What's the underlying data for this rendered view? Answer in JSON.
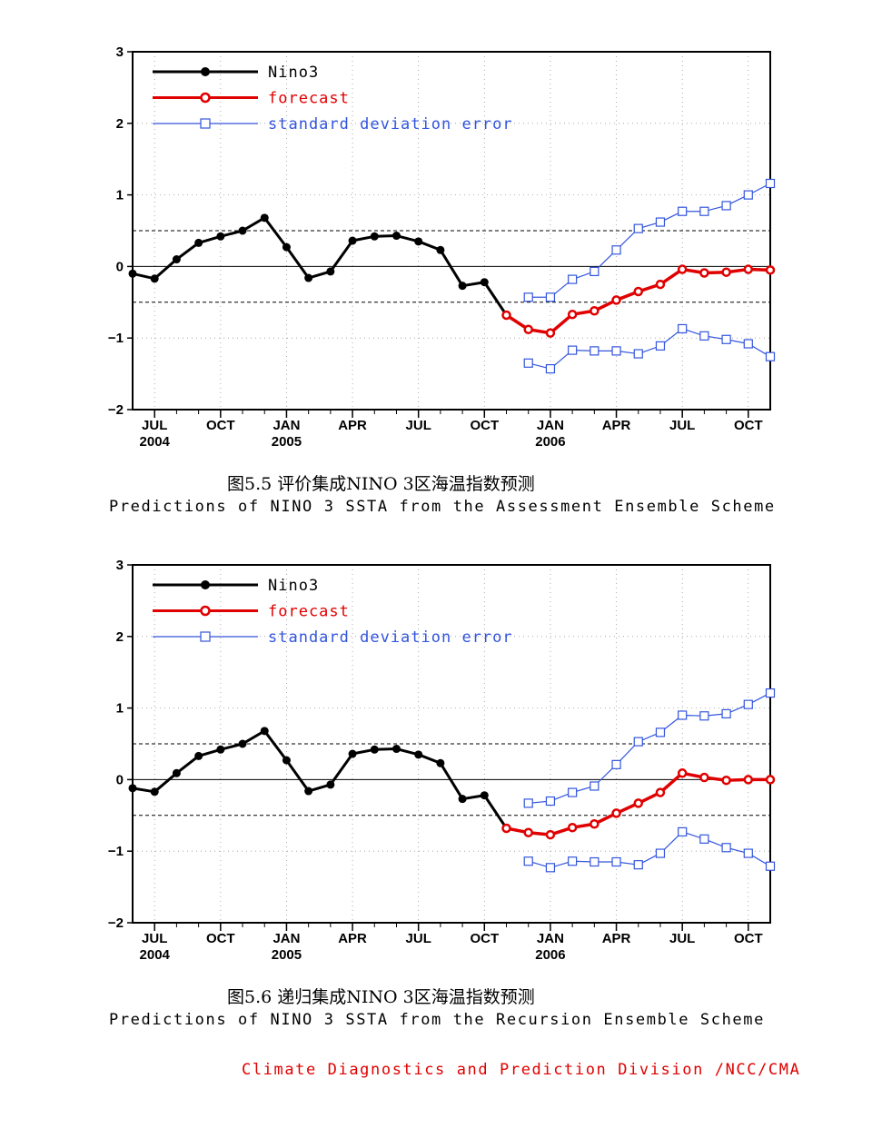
{
  "chart_data": [
    {
      "type": "line",
      "ylim": [
        -2,
        3
      ],
      "yticks": [
        "−2",
        "−1",
        "0",
        "1",
        "2",
        "3"
      ],
      "x_tick_labels": [
        {
          "month": "JUL",
          "year": "2004",
          "x": 1
        },
        {
          "month": "OCT",
          "year": "",
          "x": 4
        },
        {
          "month": "JAN",
          "year": "2005",
          "x": 7
        },
        {
          "month": "APR",
          "year": "",
          "x": 10
        },
        {
          "month": "JUL",
          "year": "",
          "x": 13
        },
        {
          "month": "OCT",
          "year": "",
          "x": 16
        },
        {
          "month": "JAN",
          "year": "2006",
          "x": 19
        },
        {
          "month": "APR",
          "year": "",
          "x": 22
        },
        {
          "month": "JUL",
          "year": "",
          "x": 25
        },
        {
          "month": "OCT",
          "year": "",
          "x": 28
        }
      ],
      "xlim": [
        0,
        29
      ],
      "reference_lines": [
        0.5,
        0,
        -0.5
      ],
      "legend": [
        "Nino3",
        "forecast",
        "standard deviation error"
      ],
      "series": [
        {
          "name": "Nino3",
          "color": "#000000",
          "x": [
            0,
            1,
            2,
            3,
            4,
            5,
            6,
            7,
            8,
            9,
            10,
            11,
            12,
            13,
            14,
            15,
            16,
            17
          ],
          "values": [
            -0.1,
            -0.17,
            0.1,
            0.33,
            0.42,
            0.5,
            0.68,
            0.27,
            -0.16,
            -0.07,
            0.36,
            0.42,
            0.43,
            0.35,
            0.23,
            -0.27,
            -0.22,
            -0.68
          ]
        },
        {
          "name": "forecast",
          "color": "#e00000",
          "x": [
            17,
            18,
            19,
            20,
            21,
            22,
            23,
            24,
            25,
            26,
            27,
            28,
            29
          ],
          "values": [
            -0.68,
            -0.88,
            -0.93,
            -0.67,
            -0.62,
            -0.47,
            -0.35,
            -0.25,
            -0.04,
            -0.09,
            -0.08,
            -0.04,
            -0.05
          ]
        },
        {
          "name": "standard deviation error",
          "color": "#3355dd",
          "x": [
            18,
            19,
            20,
            21,
            22,
            23,
            24,
            25,
            26,
            27,
            28,
            29
          ],
          "values": [
            -0.43,
            -0.43,
            -0.18,
            -0.07,
            0.23,
            0.53,
            0.62,
            0.77,
            0.77,
            0.85,
            1.0,
            1.16
          ]
        },
        {
          "name": "standard deviation error",
          "color": "#3355dd",
          "x": [
            18,
            19,
            20,
            21,
            22,
            23,
            24,
            25,
            26,
            27,
            28,
            29
          ],
          "values": [
            -1.35,
            -1.43,
            -1.17,
            -1.18,
            -1.18,
            -1.22,
            -1.11,
            -0.87,
            -0.97,
            -1.02,
            -1.08,
            -1.26
          ]
        }
      ],
      "caption_cn": "图5.5  评价集成NINO 3区海温指数预测",
      "caption_en": "Predictions of NINO 3 SSTA from the Assessment Ensemble Scheme"
    },
    {
      "type": "line",
      "ylim": [
        -2,
        3
      ],
      "yticks": [
        "−2",
        "−1",
        "0",
        "1",
        "2",
        "3"
      ],
      "x_tick_labels": [
        {
          "month": "JUL",
          "year": "2004",
          "x": 1
        },
        {
          "month": "OCT",
          "year": "",
          "x": 4
        },
        {
          "month": "JAN",
          "year": "2005",
          "x": 7
        },
        {
          "month": "APR",
          "year": "",
          "x": 10
        },
        {
          "month": "JUL",
          "year": "",
          "x": 13
        },
        {
          "month": "OCT",
          "year": "",
          "x": 16
        },
        {
          "month": "JAN",
          "year": "2006",
          "x": 19
        },
        {
          "month": "APR",
          "year": "",
          "x": 22
        },
        {
          "month": "JUL",
          "year": "",
          "x": 25
        },
        {
          "month": "OCT",
          "year": "",
          "x": 28
        }
      ],
      "xlim": [
        0,
        29
      ],
      "reference_lines": [
        0.5,
        0,
        -0.5
      ],
      "legend": [
        "Nino3",
        "forecast",
        "standard deviation error"
      ],
      "series": [
        {
          "name": "Nino3",
          "color": "#000000",
          "x": [
            0,
            1,
            2,
            3,
            4,
            5,
            6,
            7,
            8,
            9,
            10,
            11,
            12,
            13,
            14,
            15,
            16,
            17
          ],
          "values": [
            -0.12,
            -0.17,
            0.09,
            0.33,
            0.42,
            0.5,
            0.68,
            0.27,
            -0.16,
            -0.07,
            0.36,
            0.42,
            0.43,
            0.35,
            0.23,
            -0.27,
            -0.22,
            -0.68
          ]
        },
        {
          "name": "forecast",
          "color": "#e00000",
          "x": [
            17,
            18,
            19,
            20,
            21,
            22,
            23,
            24,
            25,
            26,
            27,
            28,
            29
          ],
          "values": [
            -0.68,
            -0.74,
            -0.77,
            -0.67,
            -0.62,
            -0.47,
            -0.33,
            -0.18,
            0.09,
            0.03,
            -0.01,
            0.0,
            0.0
          ]
        },
        {
          "name": "standard deviation error",
          "color": "#3355dd",
          "x": [
            18,
            19,
            20,
            21,
            22,
            23,
            24,
            25,
            26,
            27,
            28,
            29
          ],
          "values": [
            -0.33,
            -0.3,
            -0.18,
            -0.09,
            0.21,
            0.53,
            0.66,
            0.9,
            0.89,
            0.92,
            1.05,
            1.21
          ]
        },
        {
          "name": "standard deviation error",
          "color": "#3355dd",
          "x": [
            18,
            19,
            20,
            21,
            22,
            23,
            24,
            25,
            26,
            27,
            28,
            29
          ],
          "values": [
            -1.14,
            -1.23,
            -1.14,
            -1.15,
            -1.15,
            -1.19,
            -1.03,
            -0.73,
            -0.83,
            -0.95,
            -1.03,
            -1.21
          ]
        }
      ],
      "caption_cn": "图5.6  递归集成NINO 3区海温指数预测",
      "caption_en": "Predictions of NINO 3 SSTA from the Recursion Ensemble Scheme"
    }
  ],
  "footer": "Climate Diagnostics and Prediction Division /NCC/CMA"
}
